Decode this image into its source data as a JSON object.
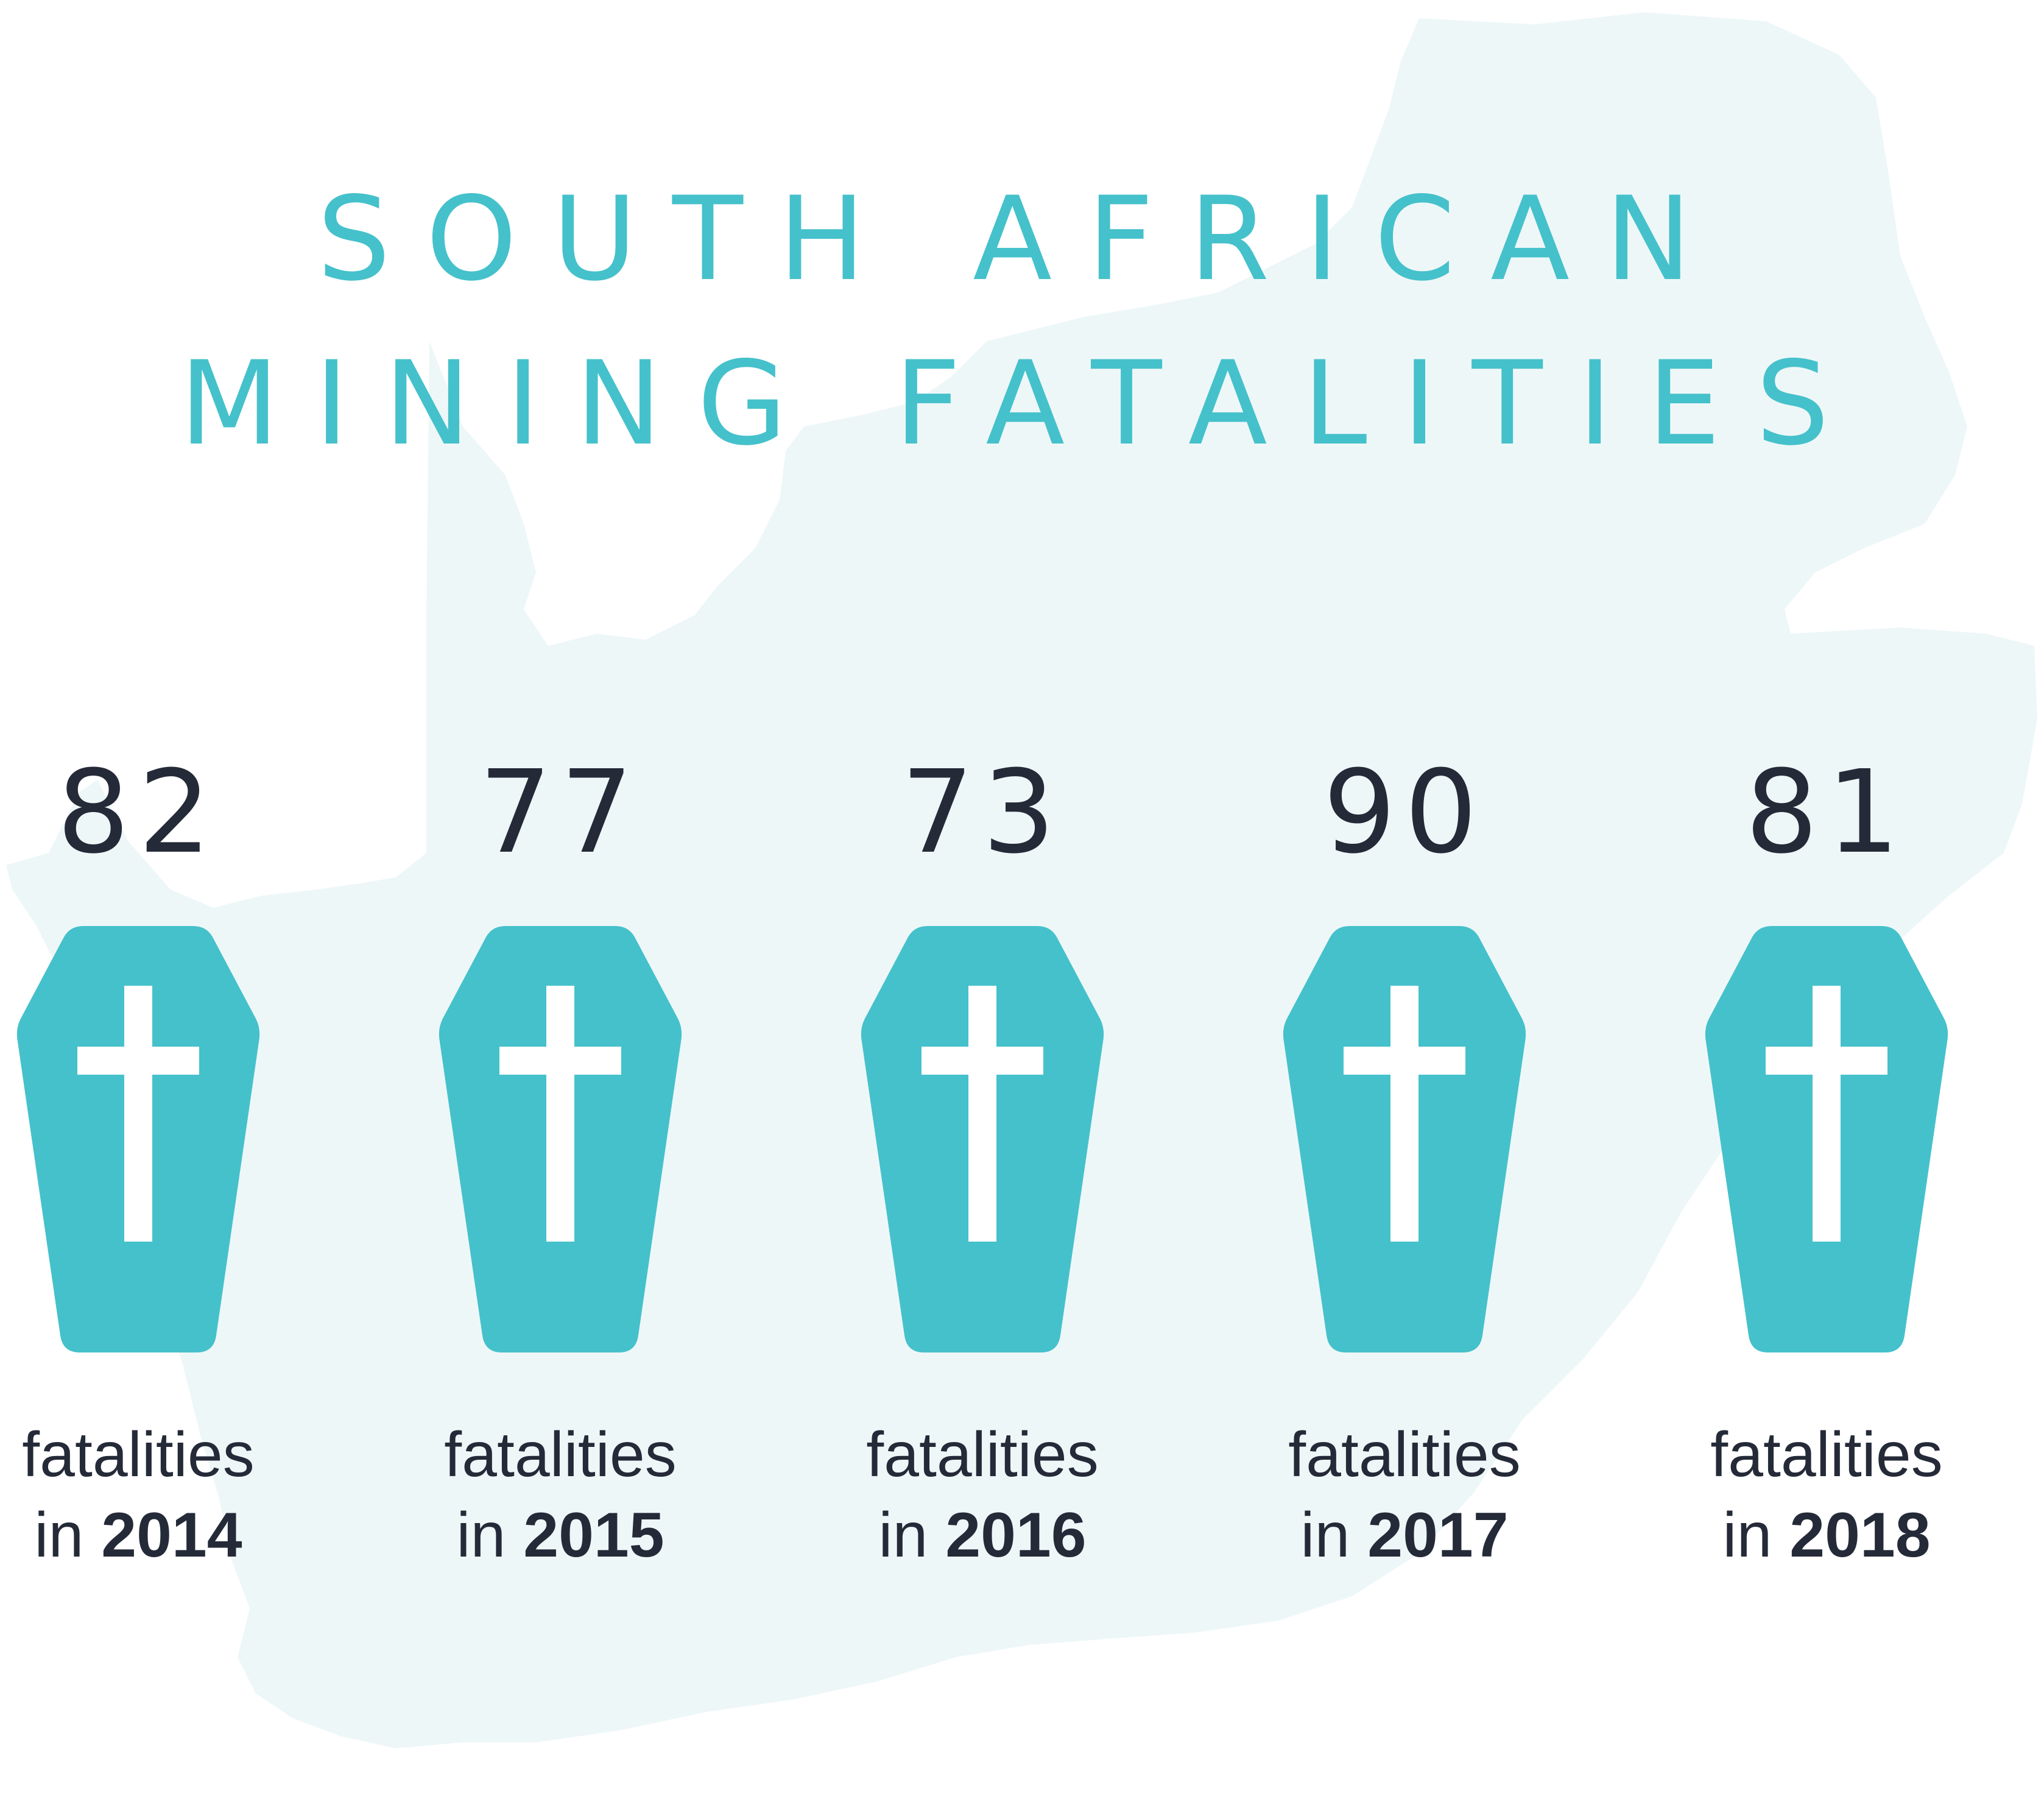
{
  "title": {
    "line1": "SOUTH AFRICAN",
    "line2": "MINING FATALITIES"
  },
  "colors": {
    "accent": "#45c1cb",
    "map": "#eef7f8",
    "text": "#252a38",
    "cross": "#ffffff"
  },
  "icons": {
    "coffin": "coffin-icon",
    "cross": "cross-icon",
    "background": "south-africa-map"
  },
  "entries": [
    {
      "count": "82",
      "line1": "fatalities",
      "prefix": "in",
      "year": "2014"
    },
    {
      "count": "77",
      "line1": "fatalities",
      "prefix": "in",
      "year": "2015"
    },
    {
      "count": "73",
      "line1": "fatalities",
      "prefix": "in",
      "year": "2016"
    },
    {
      "count": "90",
      "line1": "fatalities",
      "prefix": "in",
      "year": "2017"
    },
    {
      "count": "81",
      "line1": "fatalities",
      "prefix": "in",
      "year": "2018"
    }
  ]
}
